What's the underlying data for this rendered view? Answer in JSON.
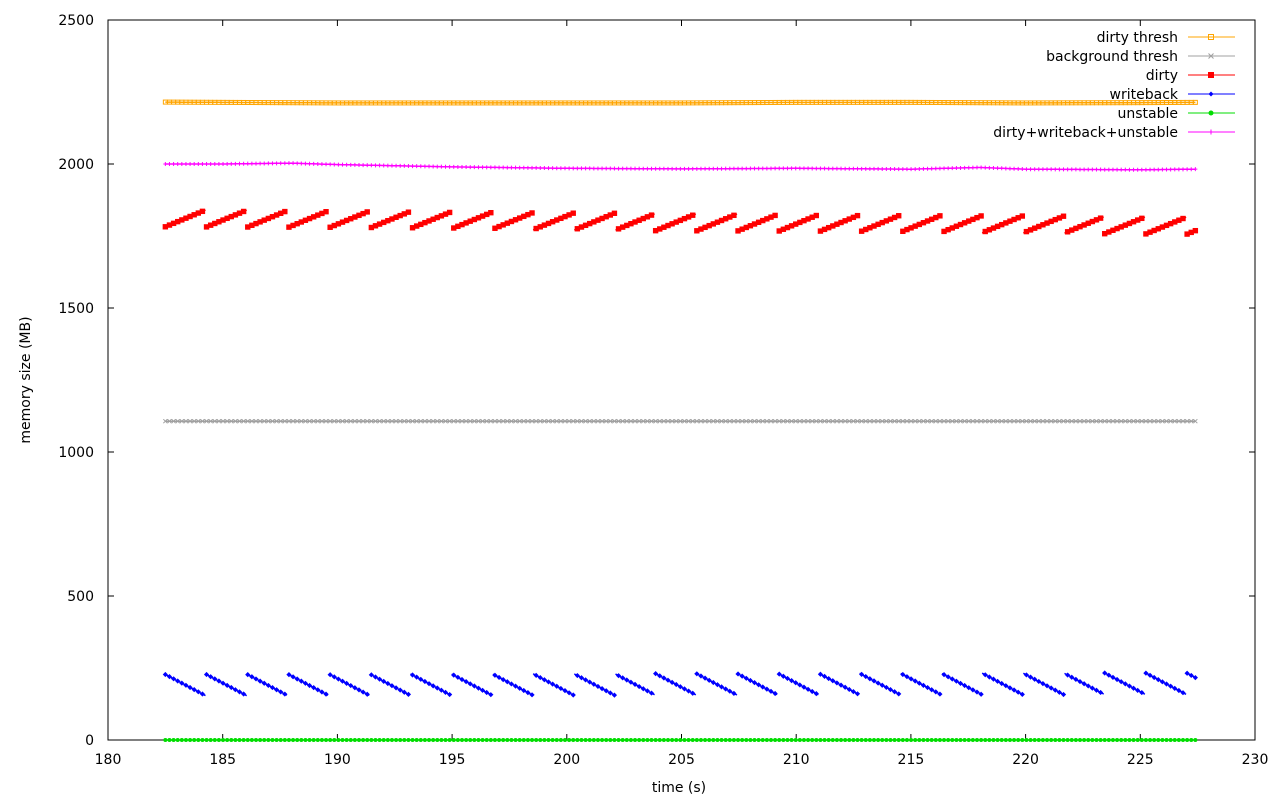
{
  "chart_data": {
    "type": "line",
    "xlabel": "time (s)",
    "ylabel": "memory size (MB)",
    "xlim": [
      180,
      230
    ],
    "ylim": [
      0,
      2500
    ],
    "xticks": [
      180,
      185,
      190,
      195,
      200,
      205,
      210,
      215,
      220,
      225,
      230
    ],
    "yticks": [
      0,
      500,
      1000,
      1500,
      2000,
      2500
    ],
    "grid": false,
    "legend_position": "top-right",
    "x_range": [
      182.5,
      227.4
    ],
    "series": [
      {
        "name": "dirty thresh",
        "color": "#FFA500",
        "marker": "square",
        "style": "flat",
        "x": [
          182.5,
          185,
          190,
          195,
          200,
          205,
          210,
          215,
          220,
          225,
          227.4
        ],
        "y": [
          2215,
          2214,
          2212,
          2212,
          2212,
          2212,
          2214,
          2214,
          2212,
          2213,
          2214
        ]
      },
      {
        "name": "background thresh",
        "color": "#A0A0A0",
        "marker": "x",
        "style": "flat",
        "x": [
          182.5,
          227.4
        ],
        "y": [
          1107,
          1107
        ]
      },
      {
        "name": "dirty",
        "color": "#FF0000",
        "marker": "filled-square",
        "style": "sawtooth",
        "period_s": 1.78,
        "rise_mb": 60,
        "x": [
          182.5,
          190,
          200,
          210,
          220,
          227.4
        ],
        "y": [
          1812,
          1808,
          1800,
          1795,
          1790,
          1785
        ]
      },
      {
        "name": "writeback",
        "color": "#0000FF",
        "marker": "filled-diamond",
        "style": "sawtooth-down",
        "period_s": 1.78,
        "drop_mb": 75,
        "x": [
          182.5,
          190,
          200,
          210,
          220,
          227.4
        ],
        "y": [
          190,
          192,
          193,
          194,
          195,
          196
        ]
      },
      {
        "name": "unstable",
        "color": "#00DD00",
        "marker": "filled-circle",
        "style": "flat",
        "x": [
          182.5,
          227.4
        ],
        "y": [
          0,
          0
        ]
      },
      {
        "name": "dirty+writeback+unstable",
        "color": "#FF00FF",
        "marker": "plus",
        "style": "flat",
        "x": [
          182.5,
          185,
          188,
          190,
          195,
          200,
          205,
          210,
          215,
          218,
          220,
          225,
          227.4
        ],
        "y": [
          2000,
          2000,
          2003,
          1998,
          1990,
          1985,
          1983,
          1985,
          1982,
          1988,
          1982,
          1980,
          1982
        ]
      }
    ]
  }
}
